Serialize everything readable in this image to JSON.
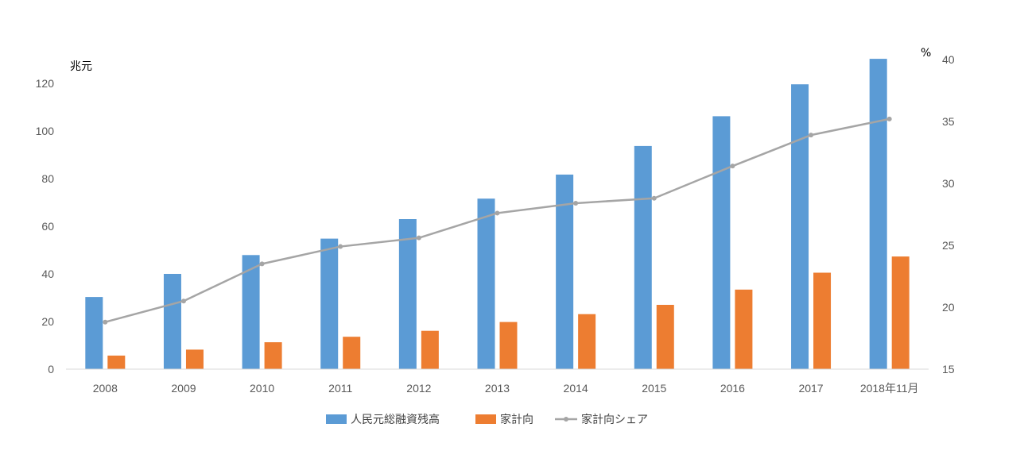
{
  "chart_data": {
    "type": "bar",
    "categories": [
      "2008",
      "2009",
      "2010",
      "2011",
      "2012",
      "2013",
      "2014",
      "2015",
      "2016",
      "2017",
      "2018年11月"
    ],
    "series": [
      {
        "name": "人民元総融資残高",
        "kind": "bar",
        "axis": "left",
        "color": "#5B9BD5",
        "values": [
          30.3,
          40.0,
          47.9,
          54.8,
          63.0,
          71.6,
          81.7,
          93.7,
          106.2,
          119.6,
          130.3
        ]
      },
      {
        "name": "家計向",
        "kind": "bar",
        "axis": "left",
        "color": "#ED7D31",
        "values": [
          5.7,
          8.2,
          11.3,
          13.6,
          16.1,
          19.8,
          23.1,
          27.0,
          33.4,
          40.5,
          47.3
        ]
      },
      {
        "name": "家計向シェア",
        "kind": "line",
        "axis": "right",
        "color": "#A5A5A5",
        "values": [
          18.8,
          20.5,
          23.5,
          24.9,
          25.6,
          27.6,
          28.4,
          28.8,
          31.4,
          33.9,
          35.2
        ]
      }
    ],
    "y_left": {
      "unit": "兆元",
      "ylim": [
        0,
        130
      ],
      "ticks": [
        "0",
        "20",
        "40",
        "60",
        "80",
        "100",
        "120"
      ]
    },
    "y_right": {
      "unit": "%",
      "ylim": [
        15,
        40
      ],
      "ticks": [
        "15",
        "20",
        "25",
        "30",
        "35",
        "40"
      ]
    },
    "grid": false,
    "legend": "bottom"
  }
}
